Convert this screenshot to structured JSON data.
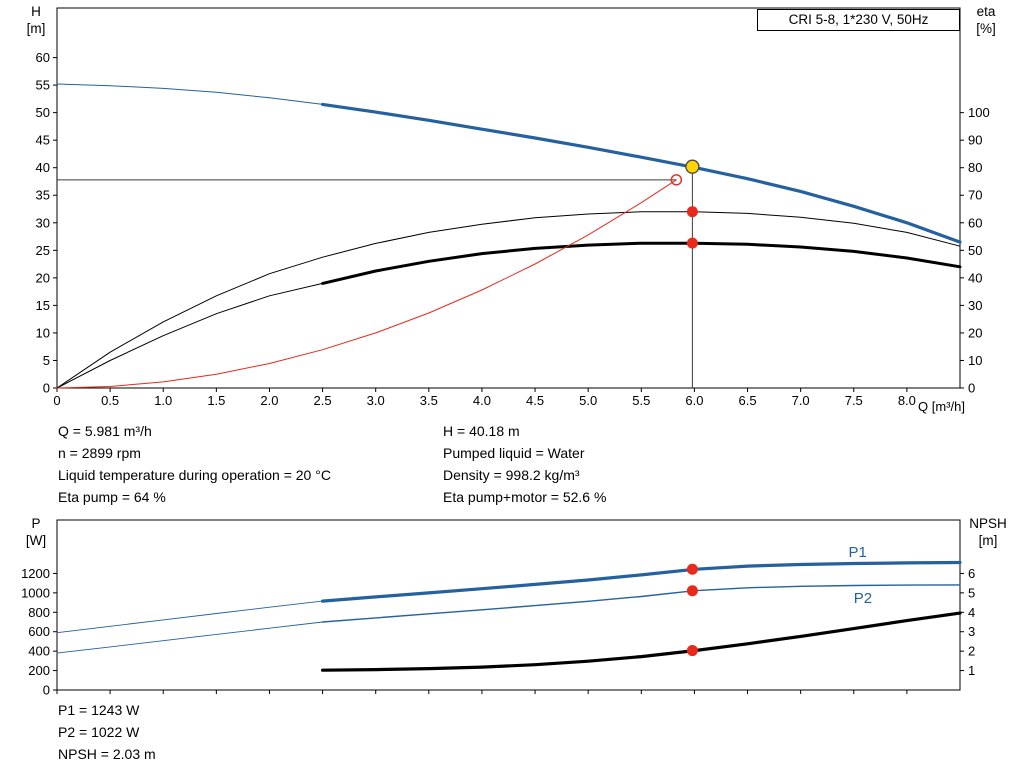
{
  "axis_titles": {
    "head": [
      "H",
      "[m]"
    ],
    "eta": [
      "eta",
      "[%]"
    ],
    "flow": "Q [m³/h]",
    "power": [
      "P",
      "[W]"
    ],
    "npsh": [
      "NPSH",
      "[m]"
    ]
  },
  "info_top": {
    "left": [
      "Q = 5.981 m³/h",
      "n = 2899 rpm",
      "Liquid temperature during operation = 20 °C",
      "Eta pump = 64 %"
    ],
    "right": [
      "H = 40.18 m",
      "Pumped liquid = Water",
      "Density = 998.2 kg/m³",
      "Eta pump+motor = 52.6 %"
    ]
  },
  "info_bottom": [
    "P1 = 1243 W",
    "P2 = 1022 W",
    "NPSH = 2.03 m"
  ],
  "colors": {
    "curve_blue": "#24619e",
    "curve_black": "#000000",
    "curve_red": "#e8291c",
    "duty_yellow": "#ffd400",
    "guide_gray": "#3c3c3c"
  },
  "chart_data": [
    {
      "type": "line",
      "title": "CRI 5-8, 1*230 V, 50Hz",
      "xlabel": "Q [m³/h]",
      "ylabel_left": "H [m]",
      "ylabel_right": "eta [%]",
      "xlim": [
        0,
        8.5
      ],
      "ylim_left": [
        0,
        69
      ],
      "right_axis_factor": 0.5,
      "x_ticks": [
        [
          0,
          "0"
        ],
        [
          0.5,
          "0.5"
        ],
        [
          1,
          "1.0"
        ],
        [
          1.5,
          "1.5"
        ],
        [
          2,
          "2.0"
        ],
        [
          2.5,
          "2.5"
        ],
        [
          3,
          "3.0"
        ],
        [
          3.5,
          "3.5"
        ],
        [
          4,
          "4.0"
        ],
        [
          4.5,
          "4.5"
        ],
        [
          5,
          "5.0"
        ],
        [
          5.5,
          "5.5"
        ],
        [
          6,
          "6.0"
        ],
        [
          6.5,
          "6.5"
        ],
        [
          7,
          "7.0"
        ],
        [
          7.5,
          "7.5"
        ],
        [
          8,
          "8.0"
        ]
      ],
      "left_ticks": [
        [
          0,
          "0"
        ],
        [
          5,
          "5"
        ],
        [
          10,
          "10"
        ],
        [
          15,
          "15"
        ],
        [
          20,
          "20"
        ],
        [
          25,
          "25"
        ],
        [
          30,
          "30"
        ],
        [
          35,
          "35"
        ],
        [
          40,
          "40"
        ],
        [
          45,
          "45"
        ],
        [
          50,
          "50"
        ],
        [
          55,
          "55"
        ],
        [
          60,
          "60"
        ]
      ],
      "right_ticks": [
        [
          0,
          "0"
        ],
        [
          10,
          "10"
        ],
        [
          20,
          "20"
        ],
        [
          30,
          "30"
        ],
        [
          40,
          "40"
        ],
        [
          50,
          "50"
        ],
        [
          60,
          "60"
        ],
        [
          70,
          "70"
        ],
        [
          80,
          "80"
        ],
        [
          90,
          "90"
        ],
        [
          100,
          "100"
        ]
      ],
      "guides": [
        {
          "type": "v",
          "x": 5.981,
          "y1": 0,
          "y2": 40.18,
          "color": "#3c3c3c"
        },
        {
          "type": "h",
          "y": 37.8,
          "x1": 0,
          "x2": 5.83,
          "color": "#3c3c3c"
        }
      ],
      "series": [
        {
          "name": "pump-curve-extension",
          "axis": "left",
          "color": "#24619e",
          "width": 1,
          "points": [
            [
              0,
              55.2
            ],
            [
              0.5,
              54.9
            ],
            [
              1,
              54.4
            ],
            [
              1.5,
              53.7
            ],
            [
              2,
              52.7
            ],
            [
              2.5,
              51.5
            ]
          ]
        },
        {
          "name": "pump-curve",
          "axis": "left",
          "color": "#24619e",
          "width": 3.2,
          "points": [
            [
              2.5,
              51.5
            ],
            [
              3,
              50.1
            ],
            [
              3.5,
              48.6
            ],
            [
              4,
              47.0
            ],
            [
              4.5,
              45.4
            ],
            [
              5,
              43.7
            ],
            [
              5.5,
              41.9
            ],
            [
              6,
              40.05
            ],
            [
              6.5,
              38.0
            ],
            [
              7,
              35.7
            ],
            [
              7.5,
              33.0
            ],
            [
              8,
              30.0
            ],
            [
              8.5,
              26.5
            ]
          ]
        },
        {
          "name": "eta-pump-curve",
          "axis": "right",
          "color": "#000000",
          "width": 1,
          "points": [
            [
              0,
              0
            ],
            [
              0.5,
              13
            ],
            [
              1,
              24
            ],
            [
              1.5,
              33.5
            ],
            [
              2,
              41.5
            ],
            [
              2.5,
              47.5
            ],
            [
              3,
              52.5
            ],
            [
              3.5,
              56.5
            ],
            [
              4,
              59.5
            ],
            [
              4.5,
              61.8
            ],
            [
              5,
              63.2
            ],
            [
              5.5,
              64
            ],
            [
              6,
              64
            ],
            [
              6.5,
              63.4
            ],
            [
              7,
              62
            ],
            [
              7.5,
              59.8
            ],
            [
              8,
              56.5
            ],
            [
              8.5,
              51.5
            ]
          ]
        },
        {
          "name": "eta-pump-motor-curve-extension",
          "axis": "right",
          "color": "#000000",
          "width": 1,
          "points": [
            [
              0,
              0
            ],
            [
              0.5,
              10
            ],
            [
              1,
              19
            ],
            [
              1.5,
              27
            ],
            [
              2,
              33.5
            ],
            [
              2.5,
              38
            ]
          ]
        },
        {
          "name": "eta-pump-motor-curve",
          "axis": "right",
          "color": "#000000",
          "width": 3,
          "points": [
            [
              2.5,
              38
            ],
            [
              3,
              42.5
            ],
            [
              3.5,
              46
            ],
            [
              4,
              48.8
            ],
            [
              4.5,
              50.7
            ],
            [
              5,
              51.9
            ],
            [
              5.5,
              52.6
            ],
            [
              6,
              52.6
            ],
            [
              6.5,
              52.2
            ],
            [
              7,
              51.2
            ],
            [
              7.5,
              49.6
            ],
            [
              8,
              47.2
            ],
            [
              8.5,
              44
            ]
          ]
        },
        {
          "name": "system-curve",
          "axis": "left",
          "color": "#e8291c",
          "width": 1,
          "points": [
            [
              0,
              0
            ],
            [
              0.5,
              0.28
            ],
            [
              1,
              1.11
            ],
            [
              1.5,
              2.5
            ],
            [
              2,
              4.45
            ],
            [
              2.5,
              6.95
            ],
            [
              3,
              10.0
            ],
            [
              3.5,
              13.62
            ],
            [
              4,
              17.8
            ],
            [
              4.5,
              22.52
            ],
            [
              5,
              27.8
            ],
            [
              5.5,
              33.64
            ],
            [
              5.83,
              37.8
            ]
          ]
        }
      ],
      "markers": [
        {
          "name": "requested-duty-point",
          "x": 5.83,
          "y": 37.8,
          "axis": "left",
          "r": 5,
          "fill": "none",
          "stroke": "#e8291c"
        },
        {
          "name": "duty-point",
          "x": 5.981,
          "y": 40.18,
          "axis": "left",
          "r": 6.5,
          "fill": "#ffd400",
          "stroke": "#4a4a4a"
        },
        {
          "name": "eta-pump-point",
          "x": 5.981,
          "y": 64,
          "axis": "right",
          "r": 5.5,
          "fill": "#e8291c"
        },
        {
          "name": "eta-pump-motor-point",
          "x": 5.981,
          "y": 52.6,
          "axis": "right",
          "r": 5.5,
          "fill": "#e8291c"
        }
      ],
      "annotations": []
    },
    {
      "type": "line",
      "title": "",
      "xlabel": "Q [m³/h]",
      "ylabel_left": "P [W]",
      "ylabel_right": "NPSH [m]",
      "xlim": [
        0,
        8.5
      ],
      "ylim_left": [
        0,
        1750
      ],
      "right_axis_factor": 200,
      "x_ticks": [
        [
          0,
          ""
        ],
        [
          0.5,
          ""
        ],
        [
          1,
          ""
        ],
        [
          1.5,
          ""
        ],
        [
          2,
          ""
        ],
        [
          2.5,
          ""
        ],
        [
          3,
          ""
        ],
        [
          3.5,
          ""
        ],
        [
          4,
          ""
        ],
        [
          4.5,
          ""
        ],
        [
          5,
          ""
        ],
        [
          5.5,
          ""
        ],
        [
          6,
          ""
        ],
        [
          6.5,
          ""
        ],
        [
          7,
          ""
        ],
        [
          7.5,
          ""
        ],
        [
          8,
          ""
        ]
      ],
      "left_ticks": [
        [
          0,
          "0"
        ],
        [
          200,
          "200"
        ],
        [
          400,
          "400"
        ],
        [
          600,
          "600"
        ],
        [
          800,
          "800"
        ],
        [
          1000,
          "1000"
        ],
        [
          1200,
          "1200"
        ]
      ],
      "right_ticks": [
        [
          1,
          "1"
        ],
        [
          2,
          "2"
        ],
        [
          3,
          "3"
        ],
        [
          4,
          "4"
        ],
        [
          5,
          "5"
        ],
        [
          6,
          "6"
        ]
      ],
      "guides": [],
      "series": [
        {
          "name": "p1-curve-extension",
          "axis": "left",
          "color": "#24619e",
          "width": 0.9,
          "points": [
            [
              0,
              590
            ],
            [
              0.5,
              656
            ],
            [
              1,
              722
            ],
            [
              1.5,
              788
            ],
            [
              2,
              852
            ],
            [
              2.5,
              915
            ]
          ]
        },
        {
          "name": "p1-curve",
          "axis": "left",
          "color": "#24619e",
          "width": 3.2,
          "points": [
            [
              2.5,
              915
            ],
            [
              3,
              958
            ],
            [
              3.5,
              1000
            ],
            [
              4,
              1043
            ],
            [
              4.5,
              1087
            ],
            [
              5,
              1132
            ],
            [
              5.5,
              1185
            ],
            [
              6,
              1243
            ],
            [
              6.5,
              1275
            ],
            [
              7,
              1292
            ],
            [
              7.5,
              1302
            ],
            [
              8,
              1308
            ],
            [
              8.5,
              1312
            ]
          ]
        },
        {
          "name": "p2-curve-extension",
          "axis": "left",
          "color": "#24619e",
          "width": 0.9,
          "points": [
            [
              0,
              380
            ],
            [
              0.5,
              444
            ],
            [
              1,
              508
            ],
            [
              1.5,
              572
            ],
            [
              2,
              636
            ],
            [
              2.5,
              700
            ]
          ]
        },
        {
          "name": "p2-curve",
          "axis": "left",
          "color": "#24619e",
          "width": 1.4,
          "points": [
            [
              2.5,
              700
            ],
            [
              3,
              742
            ],
            [
              3.5,
              784
            ],
            [
              4,
              826
            ],
            [
              4.5,
              869
            ],
            [
              5,
              913
            ],
            [
              5.5,
              963
            ],
            [
              6,
              1022
            ],
            [
              6.5,
              1052
            ],
            [
              7,
              1068
            ],
            [
              7.5,
              1076
            ],
            [
              8,
              1080
            ],
            [
              8.5,
              1082
            ]
          ]
        },
        {
          "name": "npsh-curve",
          "axis": "right",
          "color": "#000000",
          "width": 3.2,
          "points": [
            [
              2.5,
              1.02
            ],
            [
              3,
              1.05
            ],
            [
              3.5,
              1.1
            ],
            [
              4,
              1.18
            ],
            [
              4.5,
              1.3
            ],
            [
              5,
              1.48
            ],
            [
              5.5,
              1.72
            ],
            [
              6,
              2.03
            ],
            [
              6.5,
              2.38
            ],
            [
              7,
              2.76
            ],
            [
              7.5,
              3.16
            ],
            [
              8,
              3.57
            ],
            [
              8.5,
              3.96
            ]
          ]
        }
      ],
      "markers": [
        {
          "name": "p1-point",
          "x": 5.981,
          "y": 1243,
          "axis": "left",
          "r": 5.5,
          "fill": "#e8291c"
        },
        {
          "name": "p2-point",
          "x": 5.981,
          "y": 1022,
          "axis": "left",
          "r": 5.5,
          "fill": "#e8291c"
        },
        {
          "name": "npsh-point",
          "x": 5.981,
          "y": 2.03,
          "axis": "right",
          "r": 5.5,
          "fill": "#e8291c"
        }
      ],
      "annotations": [
        {
          "text": "P1",
          "x": 7.45,
          "y": 1420,
          "axis": "left",
          "color": "#24619e"
        },
        {
          "text": "P2",
          "x": 7.5,
          "y": 945,
          "axis": "left",
          "color": "#24619e"
        }
      ]
    }
  ]
}
